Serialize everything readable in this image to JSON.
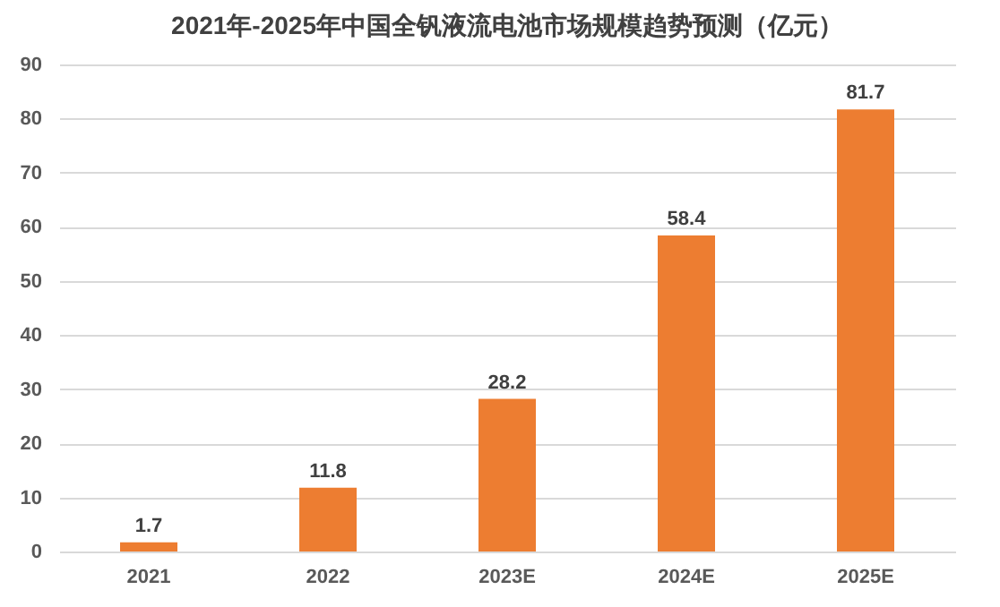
{
  "chart_data": {
    "type": "bar",
    "title": "2021年-2025年中国全钒液流电池市场规模趋势预测（亿元）",
    "categories": [
      "2021",
      "2022",
      "2023E",
      "2024E",
      "2025E"
    ],
    "values": [
      1.7,
      11.8,
      28.2,
      58.4,
      81.7
    ],
    "color": "#ed7d31",
    "ylim": [
      0,
      90
    ],
    "yticks": [
      0,
      10,
      20,
      30,
      40,
      50,
      60,
      70,
      80,
      90
    ],
    "grid": "y",
    "data_labels": true
  }
}
